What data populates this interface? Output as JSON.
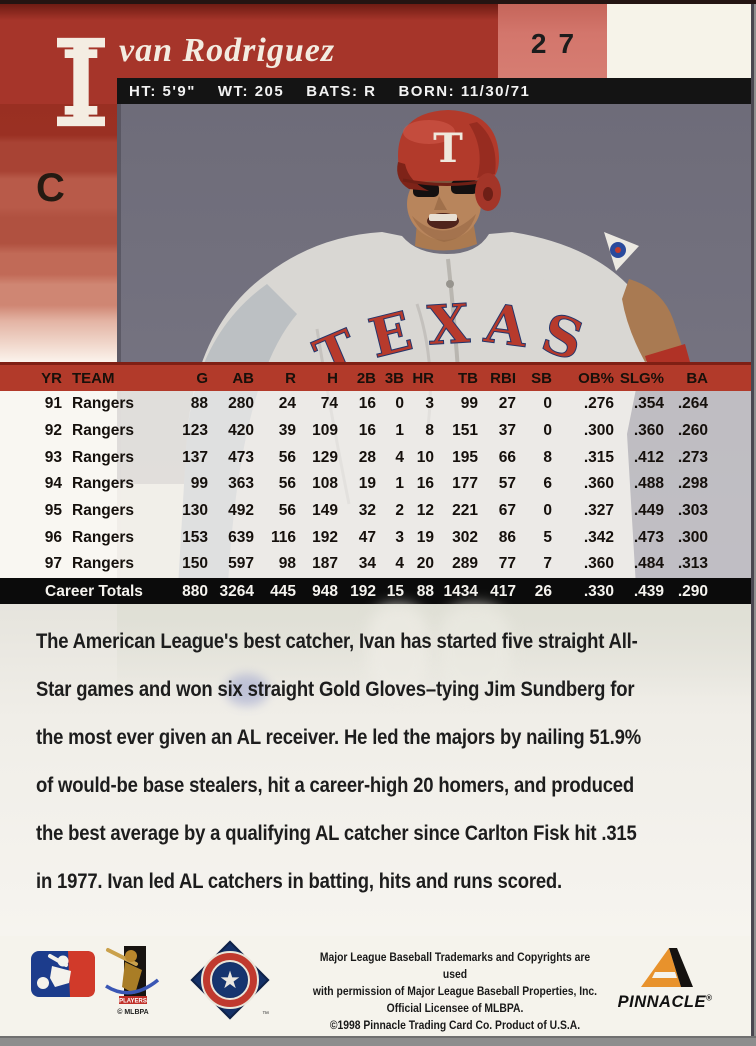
{
  "card": {
    "player_initial": "I",
    "player_name": "van Rodriguez",
    "card_number": "27",
    "position": "C",
    "info_bar": [
      {
        "label": "HT:",
        "value": "5'9\""
      },
      {
        "label": "WT:",
        "value": "205"
      },
      {
        "label": "BATS:",
        "value": "R"
      },
      {
        "label": "BORN:",
        "value": "11/30/71"
      }
    ],
    "photo": {
      "helmet_letter": "T",
      "team_wordmark": "TEXAS"
    },
    "stats": {
      "columns": [
        "YR",
        "TEAM",
        "G",
        "AB",
        "R",
        "H",
        "2B",
        "3B",
        "HR",
        "TB",
        "RBI",
        "SB",
        "OB%",
        "SLG%",
        "BA"
      ],
      "rows": [
        [
          "91",
          "Rangers",
          "88",
          "280",
          "24",
          "74",
          "16",
          "0",
          "3",
          "99",
          "27",
          "0",
          ".276",
          ".354",
          ".264"
        ],
        [
          "92",
          "Rangers",
          "123",
          "420",
          "39",
          "109",
          "16",
          "1",
          "8",
          "151",
          "37",
          "0",
          ".300",
          ".360",
          ".260"
        ],
        [
          "93",
          "Rangers",
          "137",
          "473",
          "56",
          "129",
          "28",
          "4",
          "10",
          "195",
          "66",
          "8",
          ".315",
          ".412",
          ".273"
        ],
        [
          "94",
          "Rangers",
          "99",
          "363",
          "56",
          "108",
          "19",
          "1",
          "16",
          "177",
          "57",
          "6",
          ".360",
          ".488",
          ".298"
        ],
        [
          "95",
          "Rangers",
          "130",
          "492",
          "56",
          "149",
          "32",
          "2",
          "12",
          "221",
          "67",
          "0",
          ".327",
          ".449",
          ".303"
        ],
        [
          "96",
          "Rangers",
          "153",
          "639",
          "116",
          "192",
          "47",
          "3",
          "19",
          "302",
          "86",
          "5",
          ".342",
          ".473",
          ".300"
        ],
        [
          "97",
          "Rangers",
          "150",
          "597",
          "98",
          "187",
          "34",
          "4",
          "20",
          "289",
          "77",
          "7",
          ".360",
          ".484",
          ".313"
        ]
      ],
      "career": {
        "label": "Career Totals",
        "values": [
          "880",
          "3264",
          "445",
          "948",
          "192",
          "15",
          "88",
          "1434",
          "417",
          "26",
          ".330",
          ".439",
          ".290"
        ]
      }
    },
    "bio_lines": [
      "The American League's best catcher, Ivan has started five straight All-",
      "Star games and won six straight Gold Gloves–tying Jim Sundberg for",
      "the most ever given an AL receiver. He led the majors by nailing 51.9%",
      "of would-be base stealers, hit a career-high 20 homers, and produced",
      "the best average by a qualifying AL catcher since Carlton Fisk hit .315",
      "in 1977. Ivan led AL catchers in batting, hits and runs scored."
    ],
    "footer": {
      "disclaimer_lines": [
        "Major League Baseball Trademarks and Copyrights are used",
        "with permission of Major League Baseball Properties, Inc.",
        "Official Licensee of MLBPA.",
        "©1998 Pinnacle Trading Card Co. Product of U.S.A."
      ],
      "brand": "PINNACLE",
      "brand_reg": "®",
      "mlbpa_caption": "PLAYERS",
      "mlbpa_sub": "© MLBPA"
    },
    "colors": {
      "header_red": "#a6352a",
      "number_block_red": "#d3766c",
      "table_header_red": "#b23a2a",
      "info_bar_black": "#141414",
      "career_bar_black": "#0b0b0b",
      "photo_background": "#6f6d7b",
      "helmet_red": "#b23a2b",
      "card_white": "#f5f3ec"
    }
  }
}
